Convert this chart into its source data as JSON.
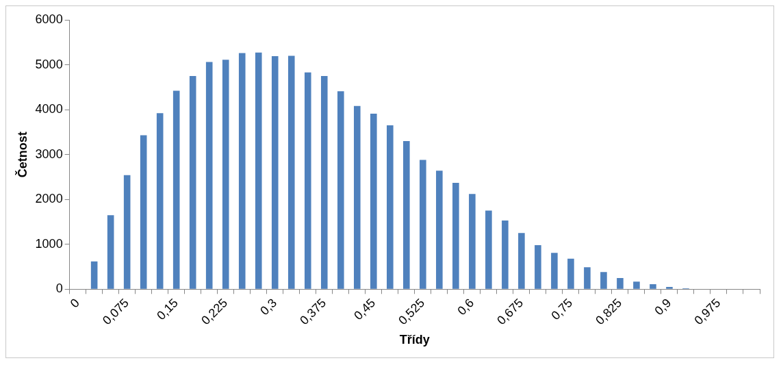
{
  "chart_data": {
    "type": "bar",
    "xlabel": "Třídy",
    "ylabel": "Četnost",
    "categories": [
      "0",
      null,
      null,
      "0,075",
      null,
      null,
      "0,15",
      null,
      null,
      "0,225",
      null,
      null,
      "0,3",
      null,
      null,
      "0,375",
      null,
      null,
      "0,45",
      null,
      null,
      "0,525",
      null,
      null,
      "0,6",
      null,
      null,
      "0,675",
      null,
      null,
      "0,75",
      null,
      null,
      "0,825",
      null,
      null,
      "0,9",
      null,
      null,
      "0,975",
      null,
      null
    ],
    "values": [
      0,
      620,
      1650,
      2540,
      3430,
      3920,
      4420,
      4750,
      5060,
      5110,
      5260,
      5270,
      5190,
      5200,
      4830,
      4750,
      4410,
      4080,
      3910,
      3650,
      3300,
      2880,
      2640,
      2370,
      2120,
      1750,
      1530,
      1250,
      980,
      810,
      680,
      490,
      380,
      250,
      170,
      110,
      50,
      20,
      0,
      0,
      0,
      0
    ],
    "color": "#4f81bd",
    "ylim": [
      0,
      6000
    ],
    "yticks": [
      0,
      1000,
      2000,
      3000,
      4000,
      5000,
      6000
    ],
    "grid": false,
    "legend": false
  }
}
